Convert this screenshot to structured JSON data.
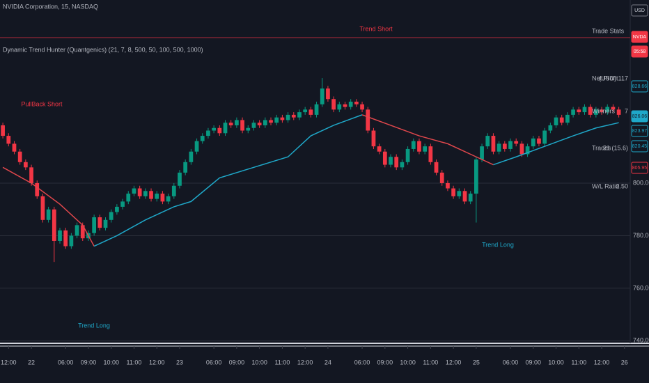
{
  "chart_data": {
    "type": "candlestick",
    "header": {
      "symbol": "NVIDIA Corporation, 15, NASDAQ",
      "indicator": "Dynamic Trend Hunter (Quantgenics) (21, 7, 8, 500, 50, 100, 500, 1000)"
    },
    "up_color": "#089981",
    "down_color": "#f23645",
    "xlim": [
      -0.5,
      110
    ],
    "xticks": [
      {
        "value": 1,
        "label": "12:00"
      },
      {
        "value": 5,
        "label": "22"
      },
      {
        "value": 11,
        "label": "06:00"
      },
      {
        "value": 15,
        "label": "09:00"
      },
      {
        "value": 19,
        "label": "10:00"
      },
      {
        "value": 23,
        "label": "11:00"
      },
      {
        "value": 27,
        "label": "12:00"
      },
      {
        "value": 31,
        "label": "23"
      },
      {
        "value": 37,
        "label": "06:00"
      },
      {
        "value": 41,
        "label": "09:00"
      },
      {
        "value": 45,
        "label": "10:00"
      },
      {
        "value": 49,
        "label": "11:00"
      },
      {
        "value": 53,
        "label": "12:00"
      },
      {
        "value": 57,
        "label": "24"
      },
      {
        "value": 63,
        "label": "06:00"
      },
      {
        "value": 67,
        "label": "09:00"
      },
      {
        "value": 71,
        "label": "10:00"
      },
      {
        "value": 75,
        "label": "11:00"
      },
      {
        "value": 79,
        "label": "12:00"
      },
      {
        "value": 83,
        "label": "25"
      },
      {
        "value": 89,
        "label": "06:00"
      },
      {
        "value": 93,
        "label": "09:00"
      },
      {
        "value": 97,
        "label": "10:00"
      },
      {
        "value": 101,
        "label": "11:00"
      },
      {
        "value": 105,
        "label": "12:00"
      },
      {
        "value": 109,
        "label": "26"
      }
    ],
    "ylim": [
      739.3,
      869.7
    ],
    "yticks": [
      {
        "value": 740,
        "label": "740.00"
      },
      {
        "value": 760,
        "label": "760.00"
      },
      {
        "value": 780,
        "label": "780.00"
      },
      {
        "value": 800,
        "label": "800.00"
      }
    ],
    "grid": true,
    "open": [
      822,
      818,
      815,
      812,
      808,
      806,
      800,
      795,
      786,
      790,
      778,
      782,
      776,
      780,
      784,
      779,
      781,
      787,
      783,
      786,
      789,
      791,
      793,
      796,
      798,
      795,
      797,
      794,
      796,
      793,
      795,
      799,
      804,
      808,
      812,
      816,
      818,
      820,
      821,
      819,
      823,
      822,
      824,
      820,
      821,
      823,
      822,
      824,
      823,
      825,
      824,
      826,
      825,
      827,
      828,
      826,
      830,
      836,
      832,
      828,
      830,
      829,
      831,
      830,
      828,
      820,
      814,
      812,
      807,
      810,
      806,
      808,
      813,
      816,
      812,
      814,
      808,
      804,
      800,
      798,
      795,
      797,
      793,
      796,
      809,
      814,
      818,
      812,
      815,
      813,
      816,
      815,
      811,
      814,
      817,
      815,
      820,
      822,
      825,
      823,
      826,
      828,
      827,
      829,
      826,
      828,
      827,
      829,
      828
    ],
    "high": [
      823,
      819,
      816,
      813,
      809,
      807,
      801,
      796,
      791,
      791,
      783,
      783,
      781,
      785,
      785,
      782,
      788,
      788,
      787,
      790,
      792,
      794,
      797,
      799,
      799,
      798,
      798,
      797,
      797,
      796,
      800,
      805,
      809,
      813,
      817,
      819,
      821,
      822,
      822,
      824,
      824,
      825,
      825,
      822,
      824,
      824,
      825,
      825,
      826,
      826,
      827,
      827,
      828,
      829,
      829,
      831,
      840,
      837,
      833,
      831,
      831,
      832,
      832,
      831,
      829,
      821,
      815,
      813,
      811,
      811,
      809,
      814,
      817,
      817,
      815,
      815,
      809,
      805,
      801,
      799,
      798,
      798,
      797,
      810,
      815,
      819,
      819,
      816,
      816,
      817,
      817,
      816,
      815,
      818,
      818,
      821,
      823,
      826,
      826,
      827,
      829,
      829,
      830,
      830,
      829,
      829,
      830,
      830,
      829
    ],
    "low": [
      817,
      814,
      811,
      807,
      805,
      799,
      794,
      785,
      785,
      770,
      777,
      775,
      775,
      779,
      778,
      778,
      780,
      782,
      782,
      785,
      788,
      790,
      792,
      795,
      794,
      794,
      793,
      793,
      792,
      792,
      794,
      798,
      803,
      807,
      811,
      815,
      817,
      819,
      818,
      818,
      821,
      821,
      819,
      819,
      820,
      821,
      821,
      822,
      822,
      823,
      823,
      824,
      824,
      826,
      825,
      825,
      829,
      831,
      827,
      827,
      828,
      828,
      829,
      827,
      819,
      813,
      811,
      806,
      806,
      805,
      805,
      807,
      812,
      811,
      811,
      807,
      803,
      799,
      797,
      794,
      794,
      792,
      792,
      785,
      808,
      813,
      811,
      811,
      812,
      812,
      814,
      810,
      810,
      813,
      814,
      814,
      819,
      821,
      822,
      822,
      825,
      826,
      826,
      825,
      825,
      826,
      826,
      827,
      825
    ],
    "close": [
      818,
      815,
      812,
      808,
      806,
      800,
      795,
      786,
      790,
      778,
      782,
      776,
      780,
      784,
      779,
      781,
      787,
      783,
      786,
      789,
      791,
      793,
      796,
      798,
      795,
      797,
      794,
      796,
      793,
      795,
      799,
      804,
      808,
      812,
      816,
      818,
      820,
      821,
      819,
      823,
      822,
      824,
      820,
      821,
      823,
      822,
      824,
      823,
      825,
      824,
      826,
      825,
      827,
      828,
      826,
      830,
      836,
      832,
      828,
      830,
      829,
      831,
      830,
      828,
      820,
      814,
      812,
      807,
      810,
      806,
      808,
      813,
      816,
      812,
      814,
      808,
      804,
      800,
      798,
      795,
      797,
      793,
      796,
      809,
      814,
      818,
      812,
      815,
      813,
      816,
      815,
      811,
      814,
      817,
      815,
      820,
      822,
      825,
      823,
      826,
      828,
      827,
      829,
      826,
      828,
      827,
      829,
      828,
      826
    ],
    "overlays": [
      {
        "color": "#e0474c",
        "x": [
          0,
          5,
          10,
          14,
          16
        ],
        "values": [
          806,
          800,
          792,
          784,
          776
        ]
      },
      {
        "color": "#1fa8c9",
        "x": [
          16,
          20,
          25,
          30,
          33,
          38,
          44,
          50,
          54,
          58,
          63
        ],
        "values": [
          776,
          780,
          786,
          791,
          793,
          802,
          806,
          810,
          818,
          822,
          826
        ]
      },
      {
        "color": "#e0474c",
        "x": [
          63,
          68,
          73,
          78,
          83,
          86
        ],
        "values": [
          826,
          822,
          818,
          815,
          810,
          807
        ]
      },
      {
        "color": "#1fa8c9",
        "x": [
          86,
          90,
          95,
          100,
          104,
          108
        ],
        "values": [
          807,
          810,
          814,
          818,
          821,
          823
        ]
      }
    ],
    "hlines": [
      {
        "value": 855.4,
        "color": "#b2283a"
      }
    ],
    "annotations": [
      {
        "text": "Trend Short",
        "color": "#f23645"
      },
      {
        "text": "PullBack Short",
        "color": "#f23645"
      },
      {
        "text": "Trend Long",
        "color": "#1fa8c9"
      },
      {
        "text": "Trend Long",
        "color": "#1fa8c9"
      }
    ],
    "stats": {
      "title": "Trade Stats",
      "rows": [
        [
          "Net Profit",
          "(USD) 117"
        ],
        [
          "Winners",
          "7"
        ],
        [
          "Trades",
          "21 (15.6)"
        ],
        [
          "W/L Ratio",
          "2.50"
        ]
      ]
    },
    "price_tags": [
      "USD",
      "NVDA",
      "05:58",
      "828.66",
      "826.06",
      "823.97",
      "820.45",
      "805.95"
    ]
  }
}
